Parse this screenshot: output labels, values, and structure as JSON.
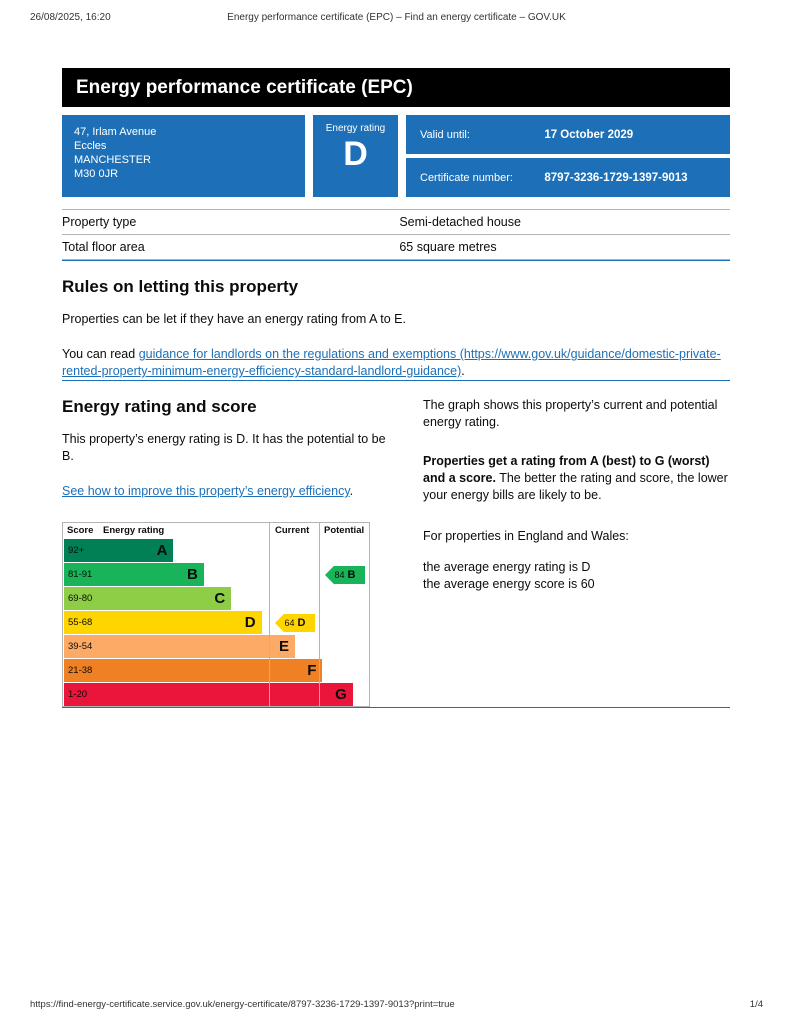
{
  "print_header": {
    "datetime": "26/08/2025, 16:20",
    "title": "Energy performance certificate (EPC) – Find an energy certificate – GOV.UK"
  },
  "print_footer": {
    "url": "https://find-energy-certificate.service.gov.uk/energy-certificate/8797-3236-1729-1397-9013?print=true",
    "page": "1/4"
  },
  "banner": {
    "title": "Energy performance certificate (EPC)"
  },
  "summary": {
    "address_lines": [
      "47, Irlam Avenue",
      "Eccles",
      "MANCHESTER",
      "M30 0JR"
    ],
    "energy_rating_label": "Energy rating",
    "energy_rating": "D",
    "valid_until_label": "Valid until:",
    "valid_until": "17 October 2029",
    "certificate_number_label": "Certificate number:",
    "certificate_number": "8797-3236-1729-1397-9013"
  },
  "property_table": {
    "rows": [
      {
        "label": "Property type",
        "value": "Semi-detached house"
      },
      {
        "label": "Total floor area",
        "value": "65 square metres"
      }
    ]
  },
  "rules_section": {
    "heading": "Rules on letting this property",
    "para1": "Properties can be let if they have an energy rating from A to E.",
    "para2_prefix": "You can read ",
    "para2_link": "guidance for landlords on the regulations and exemptions (https://www.gov.uk/guidance/domestic-private-rented-property-minimum-energy-efficiency-standard-landlord-guidance)",
    "para2_suffix": "."
  },
  "rating_section": {
    "heading": "Energy rating and score",
    "para1": "This property’s energy rating is D. It has the potential to be B.",
    "link": "See how to improve this property’s energy efficiency",
    "link_suffix": ".",
    "right_para1": "The graph shows this property’s current and potential energy rating.",
    "right_para2_bold": "Properties get a rating from A (best) to G (worst) and a score.",
    "right_para2_rest": " The better the rating and score, the lower your energy bills are likely to be.",
    "right_para3": "For properties in England and Wales:",
    "right_para4_line1": "the average energy rating is D",
    "right_para4_line2": "the average energy score is 60"
  },
  "chart_data": {
    "type": "bar",
    "title": "Energy rating and score chart",
    "headers": {
      "score": "Score",
      "rating": "Energy rating",
      "current": "Current",
      "potential": "Potential"
    },
    "bands": [
      {
        "score": "92+",
        "letter": "A",
        "color": "#008054",
        "width_pct": 36
      },
      {
        "score": "81-91",
        "letter": "B",
        "color": "#19b459",
        "width_pct": 46
      },
      {
        "score": "69-80",
        "letter": "C",
        "color": "#8dce46",
        "width_pct": 55
      },
      {
        "score": "55-68",
        "letter": "D",
        "color": "#ffd500",
        "width_pct": 65
      },
      {
        "score": "39-54",
        "letter": "E",
        "color": "#fcaa65",
        "width_pct": 76
      },
      {
        "score": "21-38",
        "letter": "F",
        "color": "#ef8023",
        "width_pct": 85
      },
      {
        "score": "1-20",
        "letter": "G",
        "color": "#e9153b",
        "width_pct": 95
      }
    ],
    "current": {
      "score": 64,
      "letter": "D",
      "band_index": 3,
      "color": "#ffd500"
    },
    "potential": {
      "score": 84,
      "letter": "B",
      "band_index": 1,
      "color": "#19b459"
    }
  },
  "colors": {
    "govuk_blue": "#1d70b8",
    "banner_bg": "#000000",
    "text": "#0b0c0c"
  }
}
